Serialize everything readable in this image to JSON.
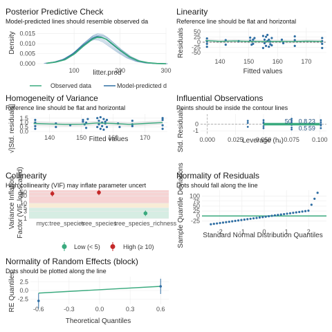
{
  "colors": {
    "green": "#3aaa7e",
    "blue": "#2f6ea3",
    "dark_blue": "#1f4f7e",
    "red": "#c42828",
    "light_red": "#f6d3d3",
    "light_green": "#d6ede3",
    "band": "#e0e0e0",
    "line": "#444444"
  },
  "panels": {
    "ppc": {
      "title": "Posterior Predictive Check",
      "subtitle": "Model-predicted lines should resemble observed da",
      "xlabel": "litter.prod",
      "ylabel": "Density",
      "legend": {
        "observed": "Observed data",
        "predicted": "Model-predicted d"
      }
    },
    "lin": {
      "title": "Linearity",
      "subtitle": "Reference line should be flat and horizontal",
      "xlabel": "Fitted values",
      "ylabel": "Residuals"
    },
    "hov": {
      "title": "Homogeneity of Variance",
      "subtitle": "Reference line should be flat and horizontal",
      "xlabel": "Fitted values",
      "ylabel": "√|Std. residuals|"
    },
    "inf": {
      "title": "Influential Observations",
      "subtitle": "Points should be inside the contour lines",
      "xlabel": "Leverage (hᵢᵢ)",
      "ylabel": "Std. Residuals"
    },
    "col": {
      "title": "Collinearity",
      "subtitle": "High collinearity (VIF) may inflate parameter uncert",
      "ylabel_1": "Variance Inflation",
      "ylabel_2": "Factor (VIF, log-scaled)",
      "legend": {
        "low": "Low (< 5)",
        "high": "High (≥ 10)"
      }
    },
    "nor": {
      "title": "Normality of Residuals",
      "subtitle": "Dots should fall along the line",
      "xlabel": "Standard Normal Distribution Quantiles",
      "ylabel": "Sample Quantile Deviations"
    },
    "re": {
      "title": "Normality of Random Effects (block)",
      "subtitle": "Dots should be plotted along the line",
      "xlabel": "Theoretical Quantiles",
      "ylabel": "RE Quantiles"
    }
  },
  "chart_data": [
    {
      "id": "ppc",
      "type": "line",
      "x_ticks": [
        100,
        200,
        300
      ],
      "y_ticks": [
        "0.000",
        "0.005",
        "0.010",
        "0.015"
      ],
      "xlim": [
        20,
        300
      ],
      "ylim": [
        -0.001,
        0.018
      ],
      "series": [
        {
          "name": "Observed data",
          "x": [
            40,
            60,
            80,
            100,
            120,
            140,
            150,
            160,
            170,
            180,
            200,
            220,
            240,
            260,
            280,
            300
          ],
          "y": [
            0.0002,
            0.0008,
            0.002,
            0.0048,
            0.0088,
            0.0123,
            0.0132,
            0.0131,
            0.0122,
            0.0105,
            0.0068,
            0.0035,
            0.0014,
            0.0005,
            0.0001,
            0.0
          ]
        },
        {
          "name": "Model-predicted d",
          "x": [
            40,
            60,
            80,
            100,
            120,
            140,
            150,
            160,
            170,
            180,
            200,
            220,
            240,
            260,
            280,
            300
          ],
          "y": [
            0.0002,
            0.0009,
            0.0023,
            0.0052,
            0.0093,
            0.0128,
            0.0136,
            0.0133,
            0.0121,
            0.0102,
            0.0065,
            0.0033,
            0.0013,
            0.0004,
            0.0001,
            0.0
          ]
        }
      ]
    },
    {
      "id": "lin",
      "type": "scatter",
      "x_ticks": [
        140,
        150,
        160,
        170
      ],
      "y_ticks": [
        50,
        25,
        0,
        -25,
        -50
      ],
      "xlim": [
        134,
        177
      ],
      "ylim": [
        -70,
        70
      ],
      "points": [
        [
          135.5,
          18
        ],
        [
          135.5,
          5
        ],
        [
          135.5,
          -22
        ],
        [
          135.5,
          -8
        ],
        [
          142,
          10
        ],
        [
          142,
          -12
        ],
        [
          146.5,
          5
        ],
        [
          150.5,
          8
        ],
        [
          150.5,
          22
        ],
        [
          151,
          -12
        ],
        [
          151.5,
          12
        ],
        [
          151.5,
          -8
        ],
        [
          152,
          20
        ],
        [
          155,
          30
        ],
        [
          155,
          -28
        ],
        [
          155.5,
          12
        ],
        [
          155.5,
          -5
        ],
        [
          156,
          26
        ],
        [
          156,
          -18
        ],
        [
          156.5,
          35
        ],
        [
          156.5,
          5
        ],
        [
          157,
          -22
        ],
        [
          157,
          12
        ],
        [
          157.5,
          3
        ],
        [
          157.5,
          -10
        ],
        [
          158,
          20
        ],
        [
          158,
          -15
        ],
        [
          161.5,
          12
        ],
        [
          162,
          -5
        ],
        [
          166,
          10
        ],
        [
          166,
          -18
        ],
        [
          166,
          28
        ],
        [
          175.5,
          20
        ],
        [
          175.5,
          5
        ],
        [
          175.5,
          -28
        ],
        [
          175.5,
          -8
        ]
      ],
      "smooth": [
        [
          135,
          8
        ],
        [
          140,
          4
        ],
        [
          145,
          6
        ],
        [
          150,
          4
        ],
        [
          155,
          3
        ],
        [
          160,
          4
        ],
        [
          165,
          3
        ],
        [
          170,
          5
        ],
        [
          175.5,
          4
        ]
      ]
    },
    {
      "id": "hov",
      "type": "scatter",
      "x_ticks": [
        140,
        150,
        160,
        170
      ],
      "y_ticks": [
        "0.0",
        "0.5",
        "1.0",
        "1.5"
      ],
      "xlim": [
        134,
        177
      ],
      "ylim": [
        -0.15,
        1.95
      ],
      "points": [
        [
          135.5,
          1.3
        ],
        [
          135.5,
          0.6
        ],
        [
          135.5,
          1.0
        ],
        [
          135.5,
          0.3
        ],
        [
          142,
          0.9
        ],
        [
          142,
          0.5
        ],
        [
          146.5,
          0.7
        ],
        [
          150.5,
          1.1
        ],
        [
          150.5,
          1.3
        ],
        [
          151,
          0.8
        ],
        [
          151.5,
          1.0
        ],
        [
          151.5,
          0.4
        ],
        [
          152,
          1.4
        ],
        [
          155,
          1.5
        ],
        [
          155,
          0.5
        ],
        [
          155.5,
          1.2
        ],
        [
          155.5,
          0.8
        ],
        [
          156,
          1.6
        ],
        [
          156,
          0.3
        ],
        [
          156.5,
          1.0
        ],
        [
          156.5,
          0.6
        ],
        [
          157,
          1.4
        ],
        [
          157,
          0.2
        ],
        [
          157.5,
          0.9
        ],
        [
          157.5,
          1.1
        ],
        [
          158,
          1.3
        ],
        [
          158,
          0.5
        ],
        [
          161.5,
          0.9
        ],
        [
          162,
          0.5
        ],
        [
          166,
          0.8
        ],
        [
          166,
          1.2
        ],
        [
          166,
          0.6
        ],
        [
          175.5,
          1.3
        ],
        [
          175.5,
          0.7
        ],
        [
          175.5,
          1.5
        ],
        [
          175.5,
          0.3
        ]
      ],
      "smooth": [
        [
          135,
          0.9
        ],
        [
          140,
          0.85
        ],
        [
          145,
          0.8
        ],
        [
          150,
          0.82
        ],
        [
          155,
          0.95
        ],
        [
          160,
          0.9
        ],
        [
          165,
          0.8
        ],
        [
          170,
          0.9
        ],
        [
          175.5,
          1.0
        ]
      ]
    },
    {
      "id": "inf",
      "type": "scatter",
      "x_ticks": [
        "0.000",
        "0.025",
        "0.050",
        "0.075",
        "0.100"
      ],
      "y_ticks": [
        0,
        -1
      ],
      "xlim": [
        -0.006,
        0.106
      ],
      "ylim": [
        -1.6,
        1.5
      ],
      "labels": [
        {
          "text": "50",
          "x": 0.072,
          "y": 0.4
        },
        {
          "text": "0.8",
          "x": 0.085,
          "y": 0.4
        },
        {
          "text": "23",
          "x": 0.093,
          "y": 0.4
        },
        {
          "text": "0.5",
          "x": 0.085,
          "y": -0.6
        },
        {
          "text": "59",
          "x": 0.093,
          "y": -0.6
        }
      ],
      "points": [
        [
          0.05,
          0.1
        ],
        [
          0.05,
          -0.3
        ],
        [
          0.05,
          0.3
        ],
        [
          0.05,
          -0.6
        ],
        [
          0.05,
          0.6
        ],
        [
          0.075,
          0.2
        ],
        [
          0.075,
          -0.5
        ],
        [
          0.075,
          0.5
        ],
        [
          0.075,
          -0.1
        ],
        [
          0.075,
          0.8
        ],
        [
          0.075,
          -0.8
        ],
        [
          0.101,
          0.3
        ],
        [
          0.101,
          -0.2
        ],
        [
          0.101,
          0.6
        ],
        [
          0.101,
          -0.6
        ],
        [
          0.101,
          0.0
        ],
        [
          0.036,
          0.2
        ],
        [
          0.036,
          -0.4
        ],
        [
          0.036,
          0.5
        ]
      ],
      "smooth": [
        [
          0.05,
          0.0
        ],
        [
          0.062,
          0.0
        ],
        [
          0.075,
          0.0
        ],
        [
          0.088,
          0.0
        ],
        [
          0.1,
          0.0
        ]
      ]
    },
    {
      "id": "col",
      "type": "scatter",
      "y_ticks": [
        1,
        3,
        5,
        10,
        30,
        50
      ],
      "ylim": [
        1,
        70
      ],
      "categories": [
        "myc",
        "tree_species",
        "tree_species_richness"
      ],
      "cat_display": [
        "myc:tree_species",
        "tree_species",
        "tree_species_richness"
      ],
      "points": [
        {
          "category": "myc",
          "vif": 42,
          "level": "High (≥ 10)"
        },
        {
          "category": "tree_species",
          "vif": 50,
          "level": "High (≥ 10)"
        },
        {
          "category": "tree_species_richness",
          "vif": 2.2,
          "level": "Low (< 5)"
        }
      ]
    },
    {
      "id": "nor",
      "type": "scatter",
      "x_ticks": [
        -2,
        -1,
        0,
        1,
        2
      ],
      "y_ticks": [
        100,
        75,
        50,
        25,
        0,
        -25
      ],
      "xlim": [
        -2.8,
        2.8
      ],
      "ylim": [
        -55,
        130
      ],
      "n": 36,
      "ref_line": 0
    },
    {
      "id": "re",
      "type": "scatter",
      "x_ticks": [
        "-0.6",
        "-0.3",
        "0.0",
        "0.3",
        "0.6"
      ],
      "y_ticks": [
        "2.5",
        "0.0",
        "-2.5"
      ],
      "xlim": [
        -0.68,
        0.68
      ],
      "ylim": [
        -4,
        4
      ],
      "points": [
        [
          -0.6,
          -3.0
        ],
        [
          0.6,
          1.2
        ]
      ]
    }
  ]
}
